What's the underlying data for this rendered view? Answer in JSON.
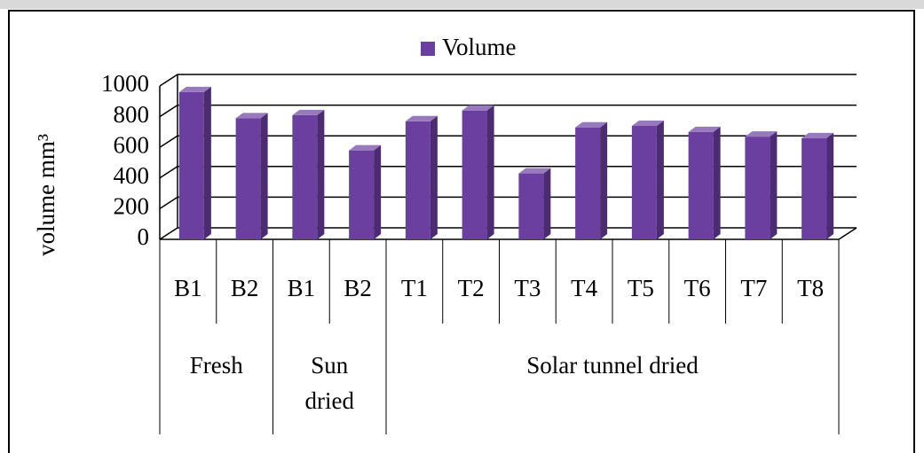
{
  "chart_data": {
    "type": "bar",
    "legend": "Volume",
    "ylabel": "volume mm³",
    "categories": [
      "B1",
      "B2",
      "B1",
      "B2",
      "T1",
      "T2",
      "T3",
      "T4",
      "T5",
      "T6",
      "T7",
      "T8"
    ],
    "groups": [
      {
        "label": "Fresh",
        "span": 2
      },
      {
        "label": "Sun dried",
        "span": 2
      },
      {
        "label": "Solar tunnel dried",
        "span": 8
      }
    ],
    "series": [
      {
        "name": "Volume",
        "color": "#6b3fa0",
        "values": [
          960,
          790,
          810,
          580,
          770,
          840,
          430,
          730,
          740,
          700,
          670,
          660
        ]
      }
    ],
    "ylim": [
      0,
      1000
    ],
    "yticks": [
      0,
      200,
      400,
      600,
      800,
      1000
    ],
    "grid": true,
    "legend_position": "top"
  }
}
